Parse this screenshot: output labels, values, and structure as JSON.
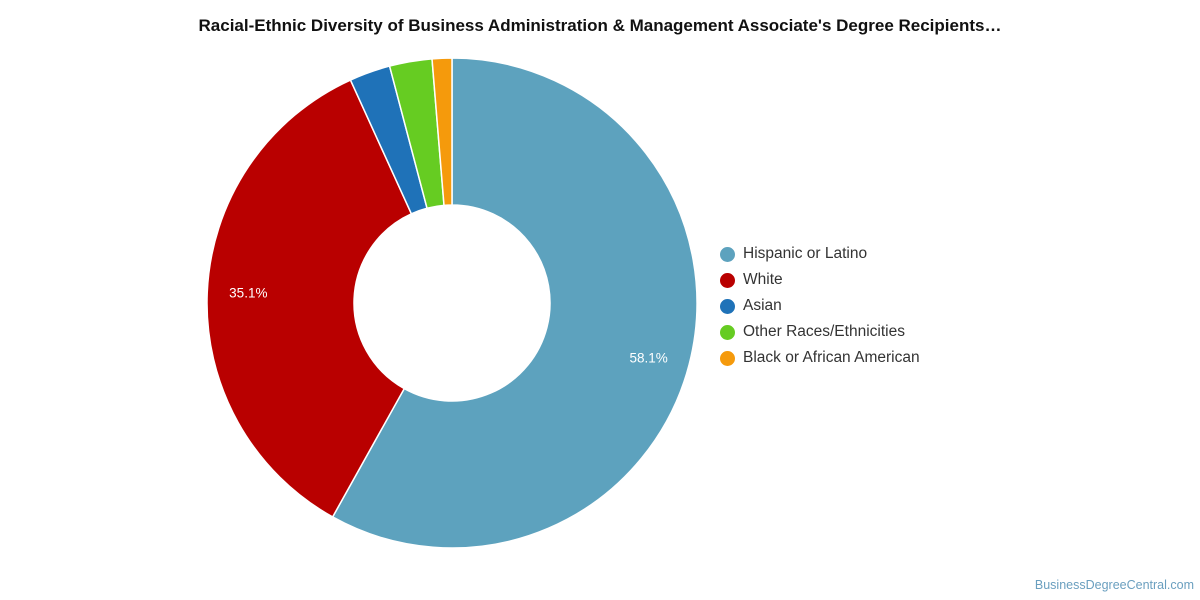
{
  "chart_data": {
    "type": "pie",
    "donut": true,
    "title": "Racial-Ethnic Diversity of Business Administration & Management Associate's Degree Recipients…",
    "legend_position": "right",
    "series": [
      {
        "name": "Hispanic or Latino",
        "value": 58.1,
        "color": "#5da2be",
        "label": "58.1%"
      },
      {
        "name": "White",
        "value": 35.1,
        "color": "#b90000",
        "label": "35.1%"
      },
      {
        "name": "Asian",
        "value": 2.7,
        "color": "#1f72b8",
        "label": ""
      },
      {
        "name": "Other Races/Ethnicities",
        "value": 2.8,
        "color": "#66cc22",
        "label": ""
      },
      {
        "name": "Black or African American",
        "value": 1.3,
        "color": "#f59a0c",
        "label": ""
      }
    ]
  },
  "footer": {
    "source": "BusinessDegreeCentral.com"
  }
}
